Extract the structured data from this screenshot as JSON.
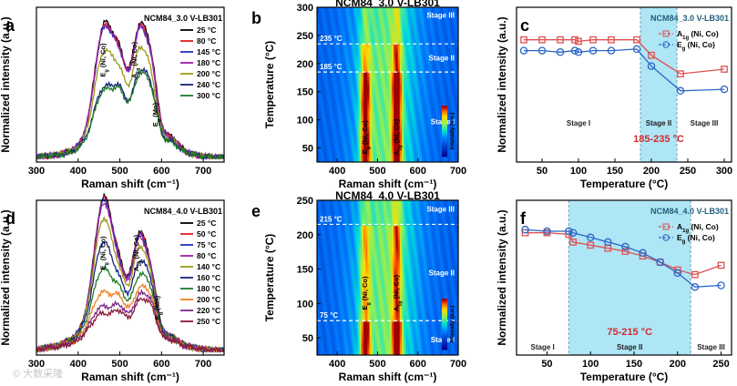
{
  "chart_data": [
    {
      "id": "a",
      "type": "line",
      "panel_label": "a",
      "title": "NCM84_3.0 V-LB301",
      "xlabel": "Raman shift (cm⁻¹)",
      "ylabel": "Normalized intensity (a.u.)",
      "xlim": [
        300,
        750
      ],
      "xticks": [
        300,
        400,
        500,
        600,
        700
      ],
      "peak_labels": [
        {
          "text": "Eg (Ni, Co)",
          "x": 465
        },
        {
          "text": "A1g (Ni, Co)",
          "x": 540
        },
        {
          "text": "Eg (Mn)",
          "x": 590
        }
      ],
      "series": [
        {
          "name": "25 °C",
          "color": "#000000",
          "heights": [
            0.02,
            0.05,
            0.14,
            0.43,
            0.84,
            0.78,
            0.97,
            0.68,
            0.18,
            0.03,
            0.01
          ]
        },
        {
          "name": "80 °C",
          "color": "#e0201f",
          "heights": [
            0.02,
            0.05,
            0.14,
            0.42,
            0.82,
            0.77,
            0.95,
            0.66,
            0.17,
            0.03,
            0.01
          ]
        },
        {
          "name": "145 °C",
          "color": "#2233bb",
          "heights": [
            0.02,
            0.05,
            0.14,
            0.42,
            0.81,
            0.76,
            0.94,
            0.64,
            0.16,
            0.03,
            0.01
          ]
        },
        {
          "name": "180 °C",
          "color": "#a020a0",
          "heights": [
            0.02,
            0.05,
            0.14,
            0.42,
            0.82,
            0.76,
            0.95,
            0.65,
            0.17,
            0.03,
            0.01
          ]
        },
        {
          "name": "200 °C",
          "color": "#9a9a18",
          "heights": [
            0.02,
            0.05,
            0.12,
            0.35,
            0.66,
            0.64,
            0.8,
            0.55,
            0.15,
            0.03,
            0.01
          ]
        },
        {
          "name": "240 °C",
          "color": "#16227a",
          "heights": [
            0.02,
            0.04,
            0.11,
            0.25,
            0.42,
            0.52,
            0.62,
            0.48,
            0.14,
            0.03,
            0.01
          ]
        },
        {
          "name": "300 °C",
          "color": "#1f7a2a",
          "heights": [
            0.02,
            0.04,
            0.1,
            0.24,
            0.4,
            0.5,
            0.6,
            0.46,
            0.13,
            0.03,
            0.01
          ]
        }
      ]
    },
    {
      "id": "b",
      "type": "heatmap",
      "panel_label": "b",
      "title": "NCM84_3.0 V-LB301",
      "xlabel": "Raman shift (cm⁻¹)",
      "ylabel": "Temperature (°C)",
      "xlim": [
        350,
        700
      ],
      "ylim": [
        25,
        300
      ],
      "xticks": [
        400,
        500,
        600,
        700
      ],
      "yticks": [
        50,
        100,
        150,
        200,
        250,
        300
      ],
      "boundaries": [
        {
          "temp": 235,
          "label": "235 °C"
        },
        {
          "temp": 185,
          "label": "185 °C"
        }
      ],
      "stages": [
        "Stage III",
        "Stage II",
        "Stage I"
      ],
      "peak_labels": [
        "Eg (Ni, Co)",
        "A1g (Ni, Co)"
      ],
      "colorbar_label": "Intensity (a.u.)"
    },
    {
      "id": "c",
      "type": "line",
      "panel_label": "c",
      "title": "NCM84_3.0 V-LB301",
      "xlabel": "Temperature (°C)",
      "ylabel": "Normalized intensity (a.u.)",
      "xlim": [
        15,
        310
      ],
      "ylim": [
        0,
        1
      ],
      "xticks": [
        50,
        100,
        150,
        200,
        250,
        300
      ],
      "highlight": {
        "range": [
          185,
          235
        ],
        "label": "185-235 °C"
      },
      "stages": [
        "Stage I",
        "Stage II",
        "Stage III"
      ],
      "series": [
        {
          "name": "A1g (Ni, Co)",
          "marker": "square",
          "color": "#e05050",
          "x": [
            25,
            50,
            75,
            95,
            100,
            120,
            145,
            180,
            200,
            240,
            300
          ],
          "y": [
            0.79,
            0.79,
            0.79,
            0.79,
            0.78,
            0.79,
            0.79,
            0.79,
            0.69,
            0.57,
            0.6
          ]
        },
        {
          "name": "Eg (Ni, Co)",
          "marker": "circle",
          "color": "#2a66c8",
          "x": [
            25,
            50,
            75,
            95,
            100,
            120,
            145,
            180,
            200,
            240,
            300
          ],
          "y": [
            0.72,
            0.72,
            0.71,
            0.72,
            0.71,
            0.72,
            0.72,
            0.73,
            0.62,
            0.46,
            0.47
          ]
        }
      ]
    },
    {
      "id": "d",
      "type": "line",
      "panel_label": "d",
      "title": "NCM84_4.0 V-LB301",
      "xlabel": "Raman shift (cm⁻¹)",
      "ylabel": "Normalized intensity (a.u.)",
      "xlim": [
        300,
        750
      ],
      "xticks": [
        300,
        400,
        500,
        600,
        700
      ],
      "peak_labels": [
        {
          "text": "Eg (Ni, Co)",
          "x": 465
        },
        {
          "text": "A1g (Ni, Co)",
          "x": 545
        },
        {
          "text": "Eg (Mn)",
          "x": 595
        }
      ],
      "series": [
        {
          "name": "25 °C",
          "color": "#000000",
          "heights": [
            0.03,
            0.08,
            0.2,
            0.52,
            0.97,
            0.62,
            0.88,
            0.52,
            0.12,
            0.03,
            0.01
          ]
        },
        {
          "name": "50 °C",
          "color": "#e0201f",
          "heights": [
            0.03,
            0.08,
            0.2,
            0.52,
            0.96,
            0.61,
            0.87,
            0.51,
            0.12,
            0.03,
            0.01
          ]
        },
        {
          "name": "75 °C",
          "color": "#2233bb",
          "heights": [
            0.03,
            0.08,
            0.2,
            0.51,
            0.95,
            0.6,
            0.86,
            0.5,
            0.12,
            0.03,
            0.01
          ]
        },
        {
          "name": "80 °C",
          "color": "#a020a0",
          "heights": [
            0.03,
            0.08,
            0.19,
            0.5,
            0.93,
            0.58,
            0.84,
            0.49,
            0.12,
            0.03,
            0.01
          ]
        },
        {
          "name": "140 °C",
          "color": "#9a9a18",
          "heights": [
            0.03,
            0.08,
            0.19,
            0.47,
            0.82,
            0.55,
            0.77,
            0.47,
            0.12,
            0.03,
            0.01
          ]
        },
        {
          "name": "160 °C",
          "color": "#16227a",
          "heights": [
            0.03,
            0.07,
            0.18,
            0.4,
            0.66,
            0.5,
            0.66,
            0.44,
            0.12,
            0.03,
            0.01
          ]
        },
        {
          "name": "180 °C",
          "color": "#1f7a2a",
          "heights": [
            0.03,
            0.07,
            0.16,
            0.32,
            0.48,
            0.45,
            0.55,
            0.4,
            0.11,
            0.03,
            0.01
          ]
        },
        {
          "name": "200 °C",
          "color": "#f08020",
          "heights": [
            0.03,
            0.06,
            0.14,
            0.24,
            0.33,
            0.4,
            0.45,
            0.36,
            0.1,
            0.03,
            0.01
          ]
        },
        {
          "name": "220 °C",
          "color": "#7a2a8a",
          "heights": [
            0.03,
            0.06,
            0.12,
            0.19,
            0.24,
            0.34,
            0.4,
            0.33,
            0.1,
            0.03,
            0.01
          ]
        },
        {
          "name": "250 °C",
          "color": "#8a1a3a",
          "heights": [
            0.03,
            0.05,
            0.11,
            0.16,
            0.2,
            0.3,
            0.36,
            0.3,
            0.09,
            0.03,
            0.01
          ]
        }
      ]
    },
    {
      "id": "e",
      "type": "heatmap",
      "panel_label": "e",
      "title": "NCM84_4.0 V-LB301",
      "xlabel": "Raman shift (cm⁻¹)",
      "ylabel": "Temperature (°C)",
      "xlim": [
        350,
        700
      ],
      "ylim": [
        25,
        250
      ],
      "xticks": [
        400,
        500,
        600,
        700
      ],
      "yticks": [
        50,
        100,
        150,
        200,
        250
      ],
      "boundaries": [
        {
          "temp": 215,
          "label": "215 °C"
        },
        {
          "temp": 75,
          "label": "75 °C"
        }
      ],
      "stages": [
        "Stage III",
        "Stage II",
        "Stage I"
      ],
      "peak_labels": [
        "Eg (Ni, Co)",
        "A1g (Ni, Co)"
      ],
      "colorbar_label": "Intensity (a.u.)"
    },
    {
      "id": "f",
      "type": "line",
      "panel_label": "f",
      "title": "NCM84_4.0 V-LB301",
      "xlabel": "Temperature (°C)",
      "ylabel": "Normalized intensity (a.u.)",
      "xlim": [
        15,
        262
      ],
      "ylim": [
        0,
        1
      ],
      "xticks": [
        50,
        100,
        150,
        200,
        250
      ],
      "highlight": {
        "range": [
          75,
          215
        ],
        "label": "75-215 °C"
      },
      "stages": [
        "Stage I",
        "Stage II",
        "Stage III"
      ],
      "series": [
        {
          "name": "A1g (Ni, Co)",
          "marker": "square",
          "color": "#e05050",
          "x": [
            25,
            50,
            75,
            80,
            100,
            120,
            140,
            160,
            180,
            200,
            220,
            250
          ],
          "y": [
            0.79,
            0.79,
            0.78,
            0.73,
            0.71,
            0.69,
            0.67,
            0.64,
            0.6,
            0.55,
            0.52,
            0.58
          ]
        },
        {
          "name": "Eg (Ni, Co)",
          "marker": "circle",
          "color": "#2a66c8",
          "x": [
            25,
            50,
            75,
            80,
            100,
            120,
            140,
            160,
            180,
            200,
            220,
            250
          ],
          "y": [
            0.81,
            0.8,
            0.8,
            0.79,
            0.76,
            0.73,
            0.7,
            0.66,
            0.6,
            0.53,
            0.44,
            0.45
          ]
        }
      ]
    }
  ],
  "watermark": "© 大数采隆"
}
